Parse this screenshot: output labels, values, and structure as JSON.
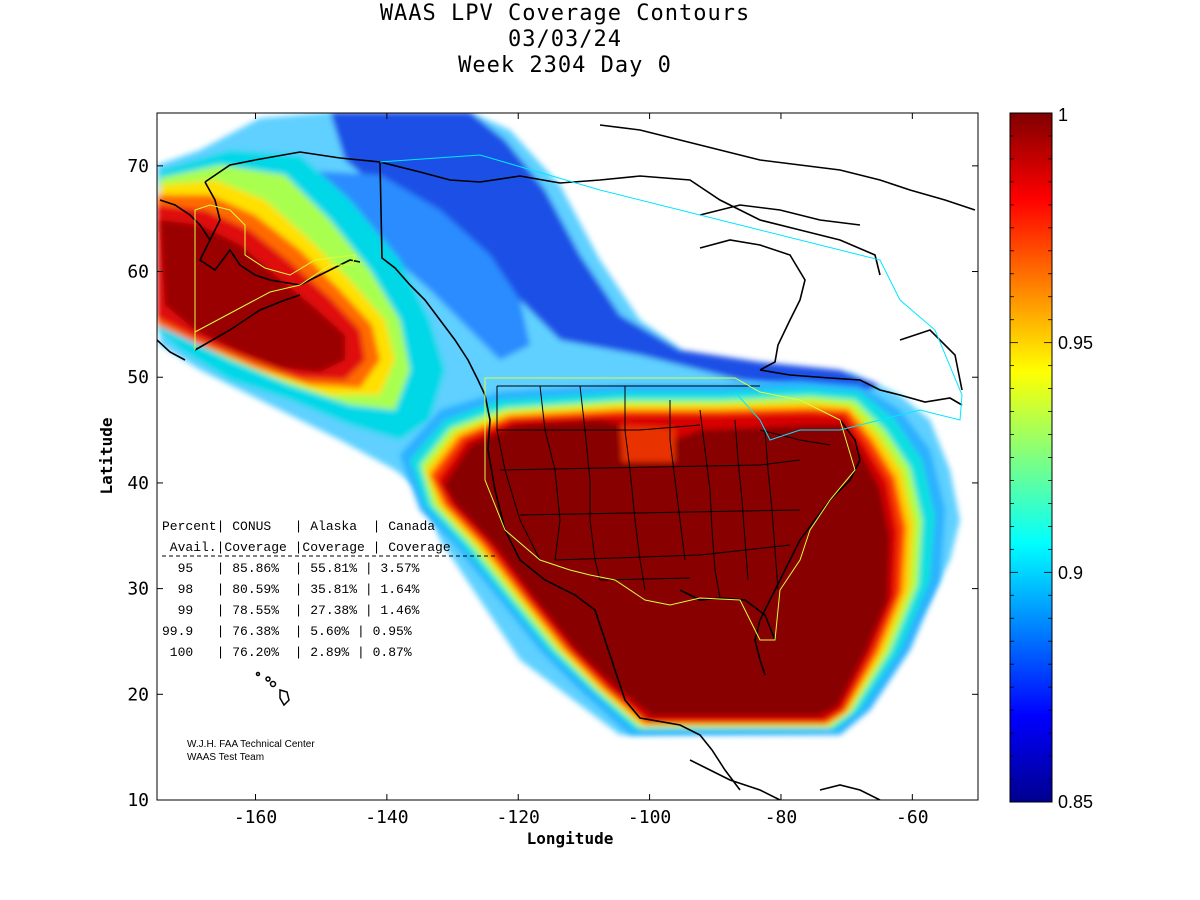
{
  "header": {
    "title_line1": "WAAS LPV Coverage Contours",
    "title_line2": "03/03/24",
    "title_line3": "Week 2304 Day 0"
  },
  "map": {
    "x_label": "Longitude",
    "y_label": "Latitude",
    "lon_ticks": [
      "-160",
      "-140",
      "-120",
      "-100",
      "-80",
      "-60"
    ],
    "lat_ticks": [
      "70",
      "60",
      "50",
      "40",
      "30",
      "20",
      "10"
    ],
    "lon_range": [
      -175,
      -50
    ],
    "lat_range": [
      10,
      75
    ]
  },
  "colorbar": {
    "min_label": "0.85",
    "label_090": "0.9",
    "label_095": "0.95",
    "max_label": "1",
    "range": [
      0.85,
      1.0
    ],
    "colormap": "jet",
    "color_low": "#00008f",
    "color_mid": "#00ffff",
    "color_high": "#800000"
  },
  "coverage_table": {
    "header_row1": "Percent| CONUS   | Alaska  | Canada",
    "header_row2": " Avail.|Coverage |Coverage | Coverage",
    "rows": [
      "  95   | 85.86%  | 55.81% | 3.57%",
      "  98   | 80.59%  | 35.81% | 1.64%",
      "  99   | 78.55%  | 27.38% | 1.46%",
      "99.9   | 76.38%  | 5.60% | 0.95%",
      " 100   | 76.20%  | 2.89% | 0.87%"
    ]
  },
  "credits": {
    "line1": "W.J.H. FAA Technical Center",
    "line2": "WAAS Test Team"
  }
}
